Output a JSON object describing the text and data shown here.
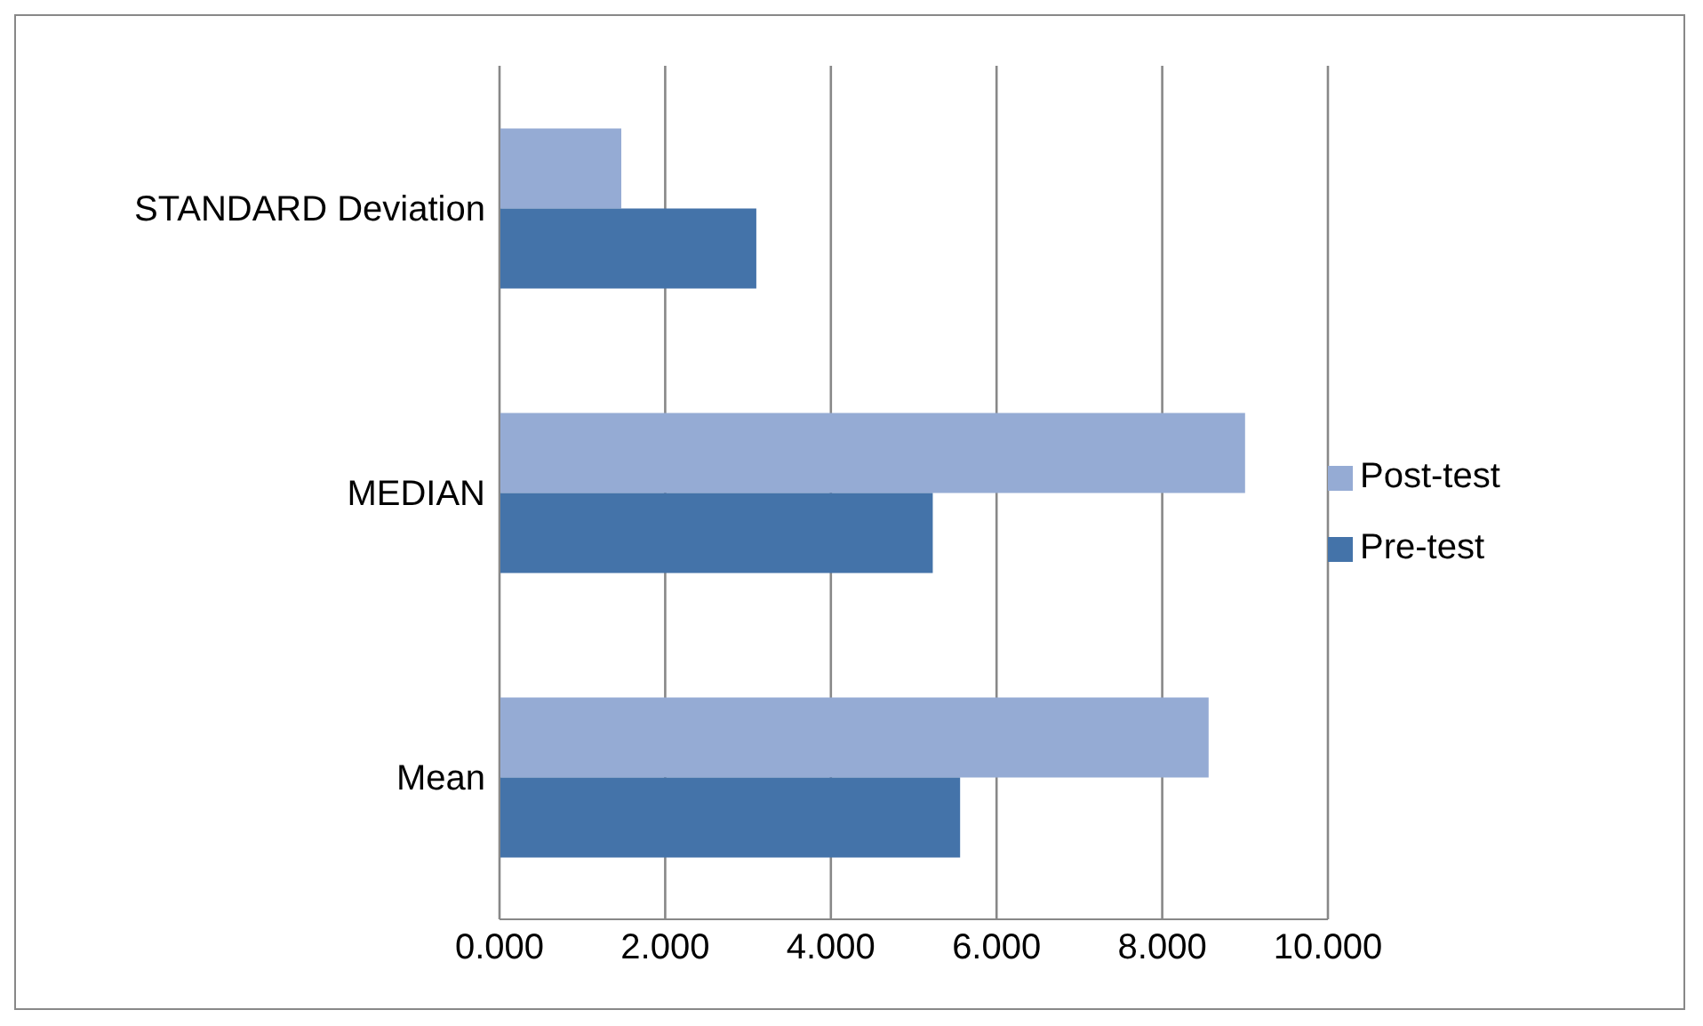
{
  "chart_data": {
    "type": "bar",
    "orientation": "horizontal",
    "categories": [
      "STANDARD Deviation",
      "MEDIAN",
      "Mean"
    ],
    "series": [
      {
        "name": "Post-test",
        "color": "#95abd4",
        "values": [
          1.47,
          9.0,
          8.56
        ]
      },
      {
        "name": "Pre-test",
        "color": "#4473a9",
        "values": [
          3.1,
          5.23,
          5.56
        ]
      }
    ],
    "xlim": [
      0,
      10
    ],
    "xticks": [
      {
        "value": 0,
        "label": "0.000"
      },
      {
        "value": 2,
        "label": "2.000"
      },
      {
        "value": 4,
        "label": "4.000"
      },
      {
        "value": 6,
        "label": "6.000"
      },
      {
        "value": 8,
        "label": "8.000"
      },
      {
        "value": 10,
        "label": "10.000"
      }
    ],
    "grid": "x",
    "legend": "right"
  }
}
